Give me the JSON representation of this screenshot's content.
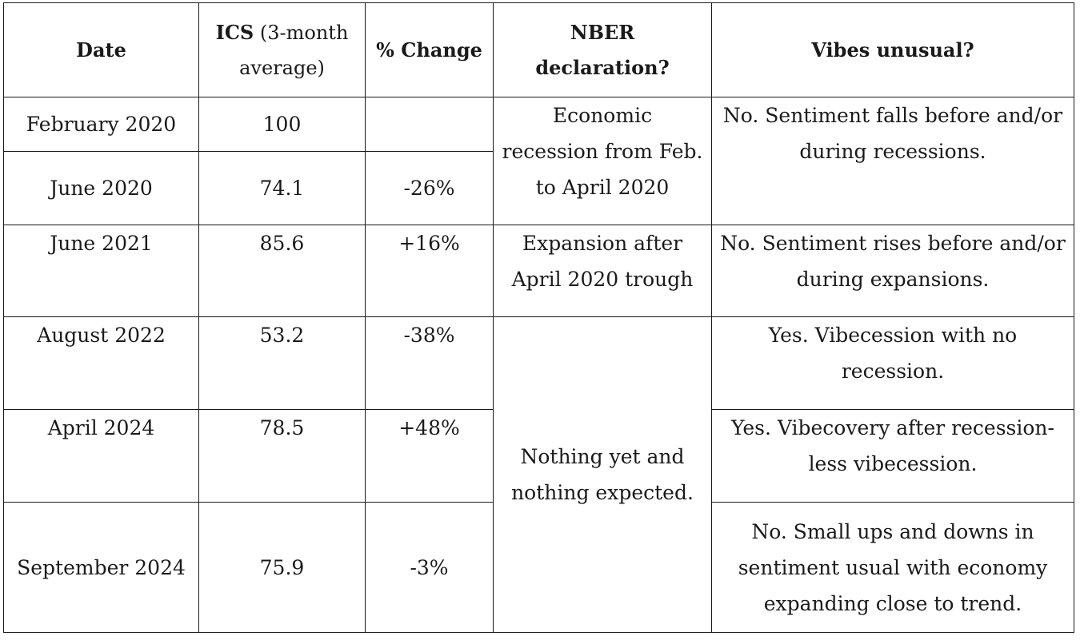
{
  "table": {
    "headers": {
      "date": "Date",
      "ics_bold": "ICS",
      "ics_rest": " (3-month average)",
      "change": "% Change",
      "nber": "NBER declaration?",
      "vibes": "Vibes unusual?"
    },
    "rows": [
      {
        "date": "February 2020",
        "ics": "100",
        "change": ""
      },
      {
        "date": "June 2020",
        "ics": "74.1",
        "change": "-26%"
      },
      {
        "date": "June 2021",
        "ics": "85.6",
        "change": "+16%"
      },
      {
        "date": "August 2022",
        "ics": "53.2",
        "change": "-38%"
      },
      {
        "date": "April 2024",
        "ics": "78.5",
        "change": "+48%"
      },
      {
        "date": "September 2024",
        "ics": "75.9",
        "change": "-3%"
      }
    ],
    "nber": {
      "recession": "Economic recession from Feb. to April 2020",
      "expansion": "Expansion after April 2020 trough",
      "nothing": "Nothing yet and nothing expected."
    },
    "vibes": {
      "covid": "No. Sentiment falls before and/or during recessions.",
      "expansion": "No. Sentiment rises before and/or during expansions.",
      "vibecession": "Yes. Vibecession with no recession.",
      "vibecovery": "Yes. Vibecovery after recession-less vibecession.",
      "small": "No. Small ups and downs in sentiment usual with economy expanding close to trend."
    }
  }
}
